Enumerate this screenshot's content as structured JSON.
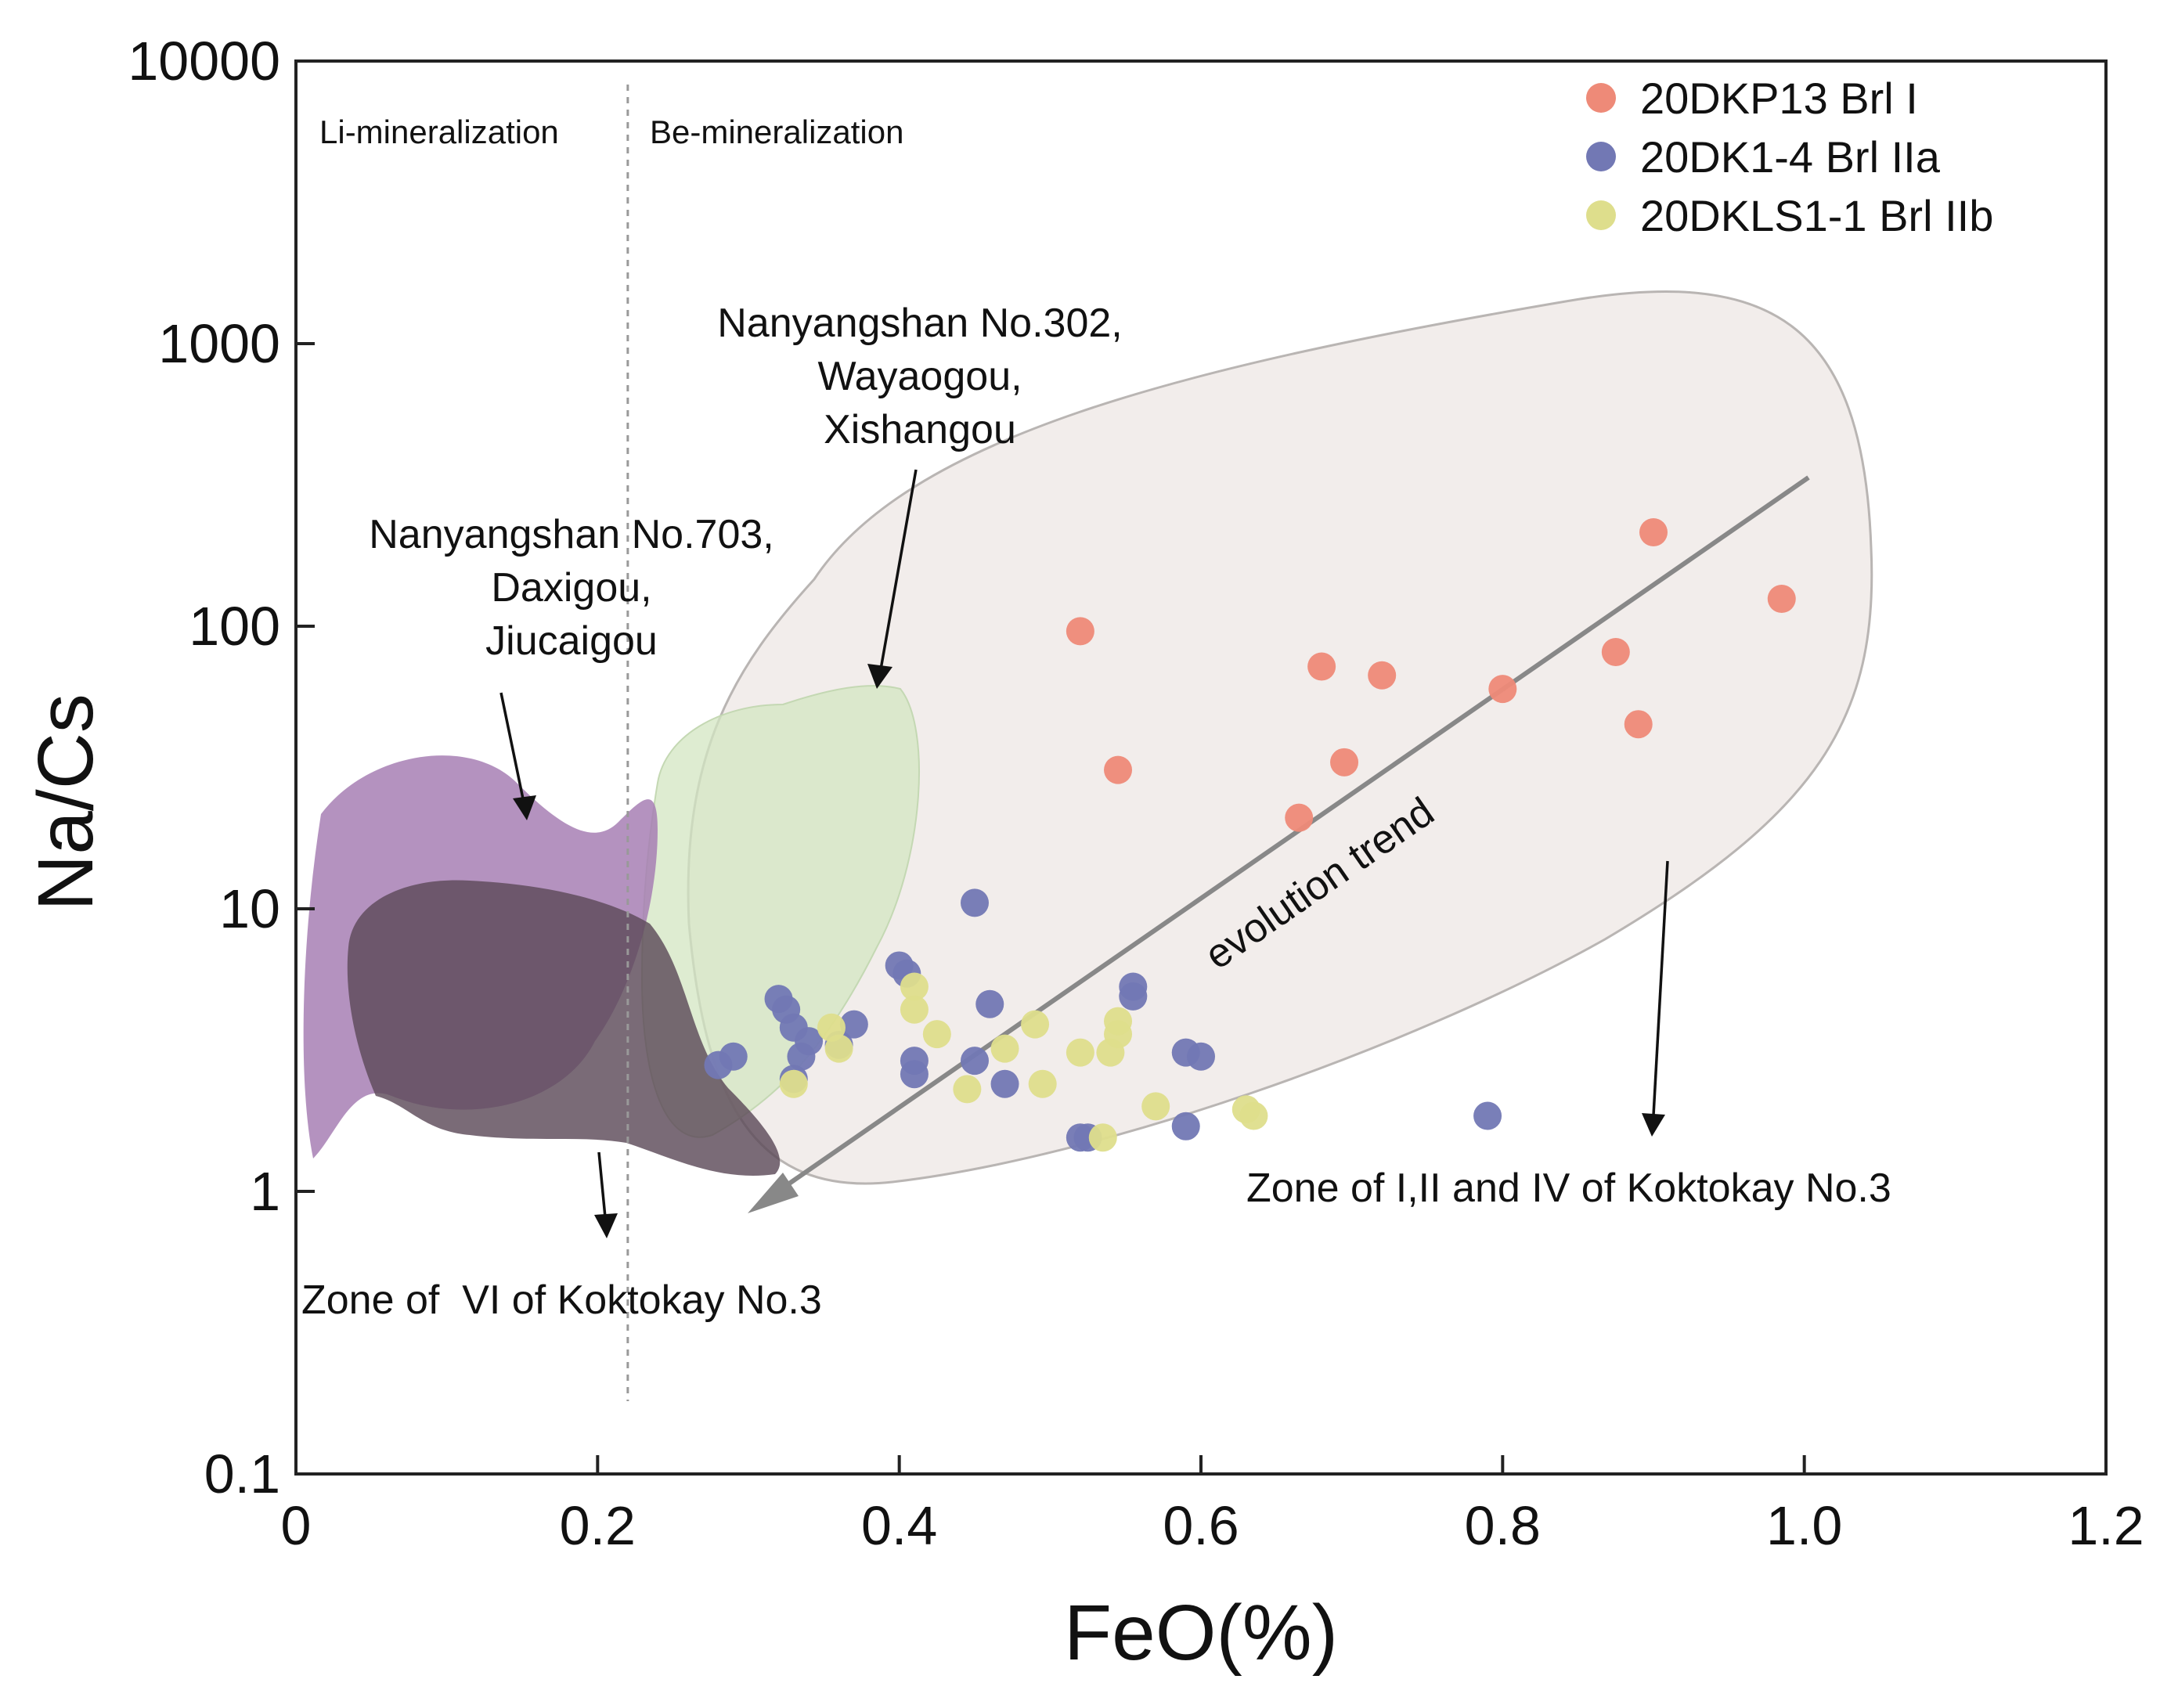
{
  "chart_data": {
    "type": "scatter",
    "title": "",
    "xlabel": "FeO(%)",
    "ylabel": "Na/Cs",
    "xlim": [
      0,
      1.2
    ],
    "ylim": [
      0.1,
      10000
    ],
    "yscale": "log",
    "x_ticks": [
      "0",
      "0.2",
      "0.4",
      "0.6",
      "0.8",
      "1.0",
      "1.2"
    ],
    "y_ticks": [
      "0.1",
      "1",
      "10",
      "100",
      "1000",
      "10000"
    ],
    "divider_x": 0.22,
    "region_labels": {
      "left": "Li-mineralization",
      "right": "Be-mineralization"
    },
    "legend_position": "top-right",
    "series": [
      {
        "name": "20DKP13 Brl I",
        "color": "#ee8a78",
        "points": [
          [
            0.52,
            96
          ],
          [
            0.545,
            31
          ],
          [
            0.665,
            21
          ],
          [
            0.68,
            72
          ],
          [
            0.695,
            33
          ],
          [
            0.72,
            67
          ],
          [
            0.8,
            60
          ],
          [
            0.875,
            81
          ],
          [
            0.89,
            45
          ],
          [
            0.9,
            215
          ],
          [
            0.985,
            125
          ]
        ]
      },
      {
        "name": "20DK1-4 Brl IIa",
        "color": "#7278b4",
        "points": [
          [
            0.28,
            2.8
          ],
          [
            0.29,
            3.0
          ],
          [
            0.32,
            4.8
          ],
          [
            0.325,
            4.4
          ],
          [
            0.33,
            3.8
          ],
          [
            0.335,
            3.0
          ],
          [
            0.34,
            3.4
          ],
          [
            0.33,
            2.5
          ],
          [
            0.36,
            3.3
          ],
          [
            0.37,
            3.9
          ],
          [
            0.4,
            6.3
          ],
          [
            0.405,
            5.9
          ],
          [
            0.41,
            2.9
          ],
          [
            0.41,
            2.6
          ],
          [
            0.45,
            10.5
          ],
          [
            0.45,
            2.9
          ],
          [
            0.46,
            4.6
          ],
          [
            0.47,
            2.4
          ],
          [
            0.52,
            1.55
          ],
          [
            0.525,
            1.55
          ],
          [
            0.555,
            4.9
          ],
          [
            0.555,
            5.3
          ],
          [
            0.59,
            1.7
          ],
          [
            0.59,
            3.1
          ],
          [
            0.6,
            3.0
          ],
          [
            0.79,
            1.85
          ]
        ]
      },
      {
        "name": "20DKLS1-1 Brl IIb",
        "color": "#dede8c",
        "points": [
          [
            0.33,
            2.4
          ],
          [
            0.355,
            3.8
          ],
          [
            0.36,
            3.2
          ],
          [
            0.41,
            5.3
          ],
          [
            0.41,
            4.4
          ],
          [
            0.425,
            3.6
          ],
          [
            0.445,
            2.3
          ],
          [
            0.47,
            3.2
          ],
          [
            0.49,
            3.9
          ],
          [
            0.495,
            2.4
          ],
          [
            0.52,
            3.1
          ],
          [
            0.535,
            1.55
          ],
          [
            0.54,
            3.1
          ],
          [
            0.545,
            3.6
          ],
          [
            0.545,
            4.0
          ],
          [
            0.57,
            2.0
          ],
          [
            0.63,
            1.95
          ],
          [
            0.635,
            1.85
          ]
        ]
      }
    ],
    "fields": [
      {
        "name": "Nanyangshan No.703, Daxigou, Jiucaigou",
        "color": "#a77fb4"
      },
      {
        "name": "Zone of VI of Koktokay No.3",
        "color": "#5d4a59"
      },
      {
        "name": "Nanyangshan No.302, Wayaogou, Xishangou",
        "color": "#d3e6c1"
      },
      {
        "name": "Zone of I,II and IV of Koktokay No.3",
        "color": "#ece6e3"
      }
    ],
    "annotations": {
      "field_703": [
        "Nanyangshan No.703,",
        "Daxigou,",
        "Jiucaigou"
      ],
      "field_302": [
        "Nanyangshan No.302,",
        "Wayaogou,",
        "Xishangou"
      ],
      "zone_vi": "Zone of  VI of Koktokay No.3",
      "zone_124": "Zone of I,II and IV of Koktokay No.3",
      "trend": "evolution trend"
    }
  }
}
